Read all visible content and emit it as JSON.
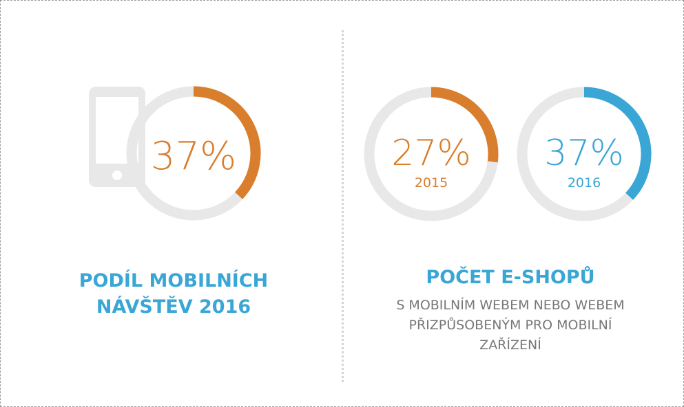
{
  "colors": {
    "orange": "#d97e2d",
    "blue": "#39a6d5",
    "track": "#e8e8e8",
    "subtitle": "#777777",
    "divider": "#d4d4d4"
  },
  "chart_data": [
    {
      "type": "pie",
      "variant": "donut",
      "value_percent": 37,
      "label": "37%",
      "color": "orange",
      "icon": "mobile-phone-icon",
      "caption_lines": [
        "PODÍL MOBILNÍCH",
        "NÁVŠTĚV 2016"
      ]
    },
    {
      "type": "pie",
      "variant": "donut",
      "group_title": "POČET E-SHOPŮ",
      "group_subtitle_lines": [
        "S MOBILNÍM WEBEM NEBO WEBEM",
        "PŘIZPŮSOBENÝM PRO MOBILNÍ",
        "ZAŘÍZENÍ"
      ],
      "series": [
        {
          "value_percent": 27,
          "label": "27%",
          "year": "2015",
          "color": "orange"
        },
        {
          "value_percent": 37,
          "label": "37%",
          "year": "2016",
          "color": "blue"
        }
      ]
    }
  ]
}
